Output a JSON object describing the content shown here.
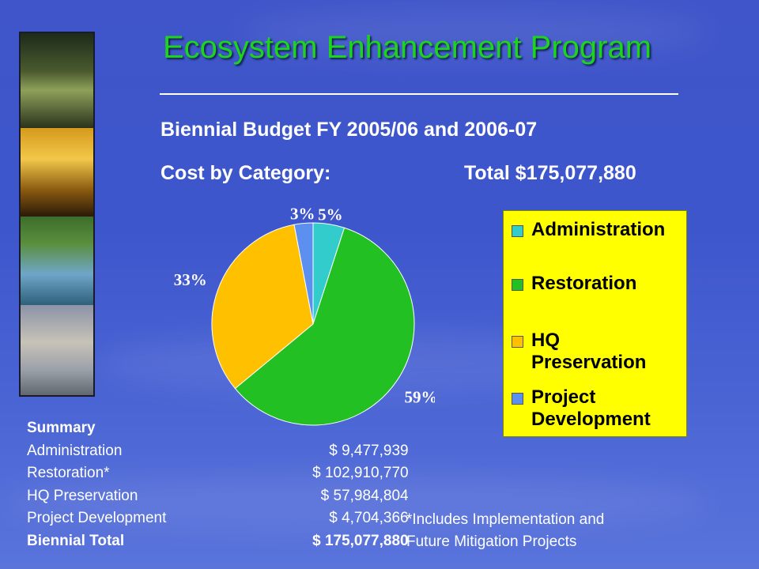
{
  "page": {
    "title": "Ecosystem Enhancement Program",
    "subtitle": "Biennial Budget FY 2005/06 and 2006-07",
    "cost_label": "Cost by Category:",
    "total_label": "Total $175,077,880"
  },
  "chart_data": {
    "type": "pie",
    "categories": [
      "Administration",
      "Restoration",
      "HQ Preservation",
      "Project Development"
    ],
    "values": [
      5,
      59,
      33,
      3
    ],
    "labels": [
      "5%",
      "59%",
      "33%",
      "3%"
    ],
    "colors": [
      "#33cccc",
      "#22c022",
      "#ffc000",
      "#5b8ff0"
    ],
    "legend_placement": "right"
  },
  "legend": {
    "items": [
      {
        "label": "Administration",
        "color": "#33cccc"
      },
      {
        "label": "Restoration",
        "color": "#22c022"
      },
      {
        "label": "HQ Preservation",
        "color": "#ffc000"
      },
      {
        "label": "Project Development",
        "color": "#5b8ff0"
      }
    ]
  },
  "summary": {
    "heading": "Summary",
    "rows": [
      {
        "name": "Administration",
        "currency": "$",
        "amount": "9,477,939"
      },
      {
        "name": "Restoration*",
        "currency": "$",
        "amount": "102,910,770"
      },
      {
        "name": "HQ Preservation",
        "currency": "$",
        "amount": "57,984,804"
      },
      {
        "name": "Project Development",
        "currency": "$",
        "amount": "4,704,366"
      },
      {
        "name": "Biennial Total",
        "currency": "$",
        "amount": "175,077,880"
      }
    ]
  },
  "footnote": {
    "line1": "*Includes Implementation and",
    "line2": "Future Mitigation Projects"
  }
}
